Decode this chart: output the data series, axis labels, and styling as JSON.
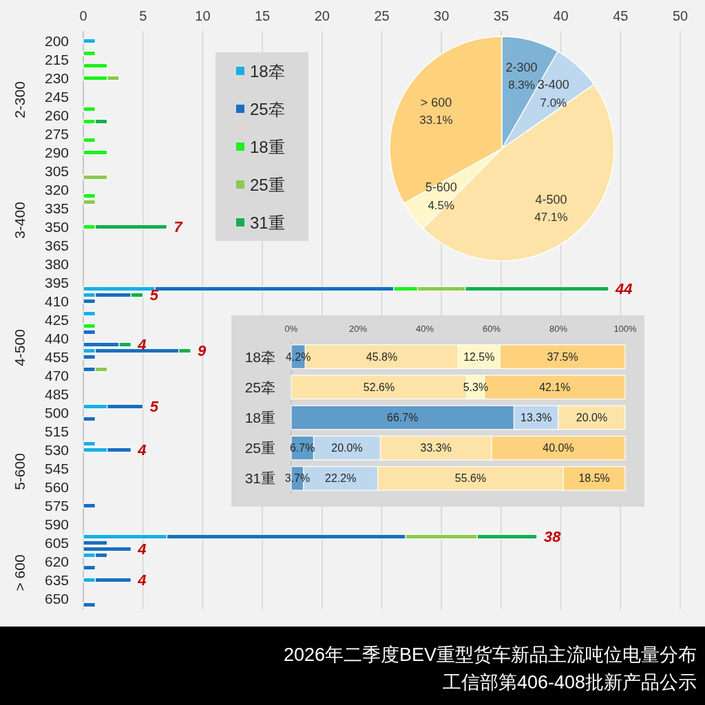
{
  "chart_data": [
    {
      "type": "bar",
      "orientation": "horizontal",
      "stacked": true,
      "title": "2026年二季度BEV重型货车新品主流吨位电量分布",
      "subtitle": "工信部第406-408批新产品公示",
      "categories": [
        "200",
        null,
        null,
        "215",
        null,
        null,
        "230",
        null,
        null,
        "245",
        null,
        null,
        "260",
        null,
        null,
        "275",
        null,
        null,
        "290",
        null,
        null,
        "305",
        null,
        null,
        "320",
        null,
        null,
        "335",
        null,
        null,
        "350",
        null,
        null,
        "365",
        null,
        null,
        "380",
        null,
        null,
        "395",
        null,
        null,
        "410",
        null,
        null,
        "425",
        null,
        null,
        "440",
        null,
        null,
        "455",
        null,
        null,
        "470",
        null,
        null,
        "485",
        null,
        null,
        "500",
        null,
        null,
        "515",
        null,
        null,
        "530",
        null,
        null,
        "545",
        null,
        null,
        "560",
        null,
        null,
        "575",
        null,
        null,
        "590",
        null,
        null,
        "605",
        null,
        null,
        "620",
        null,
        null,
        "635",
        null,
        null,
        "650",
        null
      ],
      "series": [
        {
          "name": "18牵",
          "color": "#19aee6",
          "values": [
            1,
            null,
            null,
            null,
            null,
            null,
            null,
            null,
            null,
            null,
            null,
            null,
            null,
            null,
            null,
            null,
            null,
            null,
            null,
            null,
            null,
            null,
            null,
            null,
            null,
            null,
            null,
            null,
            null,
            null,
            null,
            null,
            null,
            null,
            null,
            null,
            null,
            null,
            null,
            null,
            6,
            1,
            null,
            null,
            1,
            null,
            null,
            null,
            null,
            null,
            1,
            null,
            null,
            null,
            null,
            null,
            null,
            null,
            null,
            2,
            null,
            null,
            null,
            null,
            null,
            1,
            2,
            null,
            null,
            null,
            null,
            null,
            null,
            null,
            null,
            null,
            null,
            null,
            null,
            null,
            7,
            null,
            null,
            1,
            null,
            null,
            null,
            1,
            null,
            null,
            null,
            null
          ]
        },
        {
          "name": "25牵",
          "color": "#1a6fc0",
          "values": [
            null,
            null,
            null,
            null,
            null,
            null,
            null,
            null,
            null,
            null,
            null,
            null,
            null,
            null,
            null,
            null,
            null,
            null,
            null,
            null,
            null,
            null,
            null,
            null,
            null,
            null,
            null,
            null,
            null,
            null,
            null,
            null,
            null,
            null,
            null,
            null,
            null,
            null,
            null,
            null,
            20,
            3,
            1,
            null,
            null,
            null,
            null,
            1,
            null,
            3,
            7,
            1,
            null,
            1,
            null,
            null,
            null,
            null,
            null,
            3,
            null,
            1,
            null,
            null,
            null,
            null,
            2,
            null,
            null,
            null,
            null,
            null,
            null,
            null,
            null,
            1,
            null,
            null,
            null,
            null,
            20,
            2,
            4,
            1,
            null,
            1,
            null,
            3,
            null,
            null,
            null,
            1
          ]
        },
        {
          "name": "18重",
          "color": "#1ff01f",
          "values": [
            null,
            null,
            1,
            null,
            2,
            null,
            2,
            null,
            null,
            null,
            null,
            1,
            null,
            1,
            null,
            null,
            1,
            null,
            2,
            null,
            null,
            null,
            null,
            null,
            null,
            1,
            null,
            null,
            null,
            null,
            1,
            null,
            null,
            null,
            null,
            null,
            null,
            null,
            null,
            null,
            2,
            null,
            null,
            null,
            null,
            null,
            1,
            null,
            null,
            null,
            null,
            null,
            null,
            null,
            null,
            null,
            null,
            null,
            null,
            null,
            null,
            null,
            null,
            null,
            null,
            null,
            null,
            null,
            null,
            null,
            null,
            null,
            null,
            null,
            null,
            null,
            null,
            null,
            null,
            null,
            null,
            null,
            null,
            null,
            null,
            null,
            null,
            null,
            null,
            null,
            null,
            null
          ]
        },
        {
          "name": "25重",
          "color": "#8dc851",
          "values": [
            null,
            null,
            null,
            null,
            null,
            null,
            1,
            null,
            null,
            null,
            null,
            null,
            null,
            null,
            null,
            null,
            null,
            null,
            null,
            null,
            null,
            null,
            2,
            null,
            null,
            null,
            1,
            null,
            null,
            null,
            null,
            null,
            null,
            null,
            null,
            null,
            null,
            null,
            null,
            null,
            4,
            null,
            null,
            null,
            null,
            null,
            null,
            null,
            null,
            null,
            null,
            null,
            null,
            1,
            null,
            null,
            null,
            null,
            null,
            null,
            null,
            null,
            null,
            null,
            null,
            null,
            null,
            null,
            null,
            null,
            null,
            null,
            null,
            null,
            null,
            null,
            null,
            null,
            null,
            null,
            6,
            null,
            null,
            null,
            null,
            null,
            null,
            null,
            null,
            null,
            null,
            null
          ]
        },
        {
          "name": "31重",
          "color": "#13ae52",
          "values": [
            null,
            null,
            null,
            null,
            null,
            null,
            null,
            null,
            null,
            null,
            null,
            null,
            null,
            1,
            null,
            null,
            null,
            null,
            null,
            null,
            null,
            null,
            null,
            null,
            null,
            null,
            null,
            null,
            null,
            null,
            6,
            null,
            null,
            null,
            null,
            null,
            null,
            null,
            null,
            null,
            12,
            1,
            null,
            null,
            null,
            null,
            null,
            null,
            null,
            1,
            1,
            null,
            null,
            null,
            null,
            null,
            null,
            null,
            null,
            null,
            null,
            null,
            null,
            null,
            null,
            null,
            null,
            null,
            null,
            null,
            null,
            null,
            null,
            null,
            null,
            null,
            null,
            null,
            null,
            null,
            5,
            null,
            null,
            null,
            null,
            null,
            null,
            null,
            null,
            null,
            null,
            null
          ]
        }
      ],
      "totals": [
        null,
        null,
        null,
        null,
        null,
        null,
        null,
        null,
        null,
        null,
        null,
        null,
        null,
        null,
        null,
        null,
        null,
        null,
        null,
        null,
        null,
        null,
        null,
        null,
        null,
        null,
        null,
        null,
        null,
        null,
        "7",
        null,
        null,
        null,
        null,
        null,
        null,
        null,
        null,
        null,
        "44",
        "5",
        null,
        null,
        null,
        null,
        null,
        null,
        null,
        "4",
        "9",
        null,
        null,
        null,
        null,
        null,
        null,
        null,
        null,
        "5",
        null,
        null,
        null,
        null,
        null,
        null,
        "4",
        null,
        null,
        null,
        null,
        null,
        null,
        null,
        null,
        null,
        null,
        null,
        null,
        null,
        "38",
        null,
        "4",
        null,
        null,
        null,
        null,
        "4",
        null,
        null,
        null,
        null
      ],
      "annotations": [
        "2-300",
        "3-400",
        "4-500",
        "5-600",
        "> 600"
      ],
      "xlim": [
        0,
        50
      ],
      "xticks": [
        0,
        5,
        10,
        15,
        20,
        25,
        30,
        35,
        40,
        45,
        50
      ],
      "grid": "x",
      "legend": "top left"
    },
    {
      "type": "pie",
      "categories": [
        "2-300",
        "3-400",
        "4-500",
        "5-600",
        "> 600"
      ],
      "values": [
        8.3,
        7.0,
        47.1,
        4.5,
        33.1
      ],
      "colors": [
        "#7fb3d5",
        "#bdd7ee",
        "#fde3a7",
        "#fff6c9",
        "#fed27c"
      ],
      "value_labels": [
        "8.3%",
        "7.0%",
        "47.1%",
        "4.5%",
        "33.1%"
      ]
    },
    {
      "type": "bar",
      "orientation": "horizontal",
      "stacked": true,
      "categories": [
        "18牵",
        "25牵",
        "18重",
        "25重",
        "31重"
      ],
      "series": [
        {
          "color": "#5f9cc9",
          "values": [
            4.2,
            null,
            66.7,
            6.7,
            3.7
          ],
          "value_labels": [
            "4.2%",
            null,
            "66.7%",
            "6.7%",
            "3.7%"
          ]
        },
        {
          "color": "#bdd7ee",
          "values": [
            null,
            null,
            13.3,
            20.0,
            22.2
          ],
          "value_labels": [
            null,
            null,
            "13.3%",
            "20.0%",
            "22.2%"
          ]
        },
        {
          "color": "#fde3a7",
          "values": [
            45.8,
            52.6,
            20.0,
            33.3,
            55.6
          ],
          "value_labels": [
            "45.8%",
            "52.6%",
            "20.0%",
            "33.3%",
            "55.6%"
          ]
        },
        {
          "color": "#fff6c9",
          "values": [
            12.5,
            5.3,
            null,
            null,
            null
          ],
          "value_labels": [
            "12.5%",
            "5.3%",
            null,
            null,
            null
          ]
        },
        {
          "color": "#fed27c",
          "values": [
            37.5,
            42.1,
            null,
            40.0,
            18.5
          ],
          "value_labels": [
            "37.5%",
            "42.1%",
            null,
            "40.0%",
            "18.5%"
          ]
        }
      ],
      "xlim": [
        0,
        100
      ],
      "xticks": [
        {
          "value": 0,
          "label": "0%"
        },
        {
          "value": 20,
          "label": "20%"
        },
        {
          "value": 40,
          "label": "40%"
        },
        {
          "value": 60,
          "label": "60%"
        },
        {
          "value": 80,
          "label": "80%"
        },
        {
          "value": 100,
          "label": "100%"
        }
      ]
    }
  ]
}
